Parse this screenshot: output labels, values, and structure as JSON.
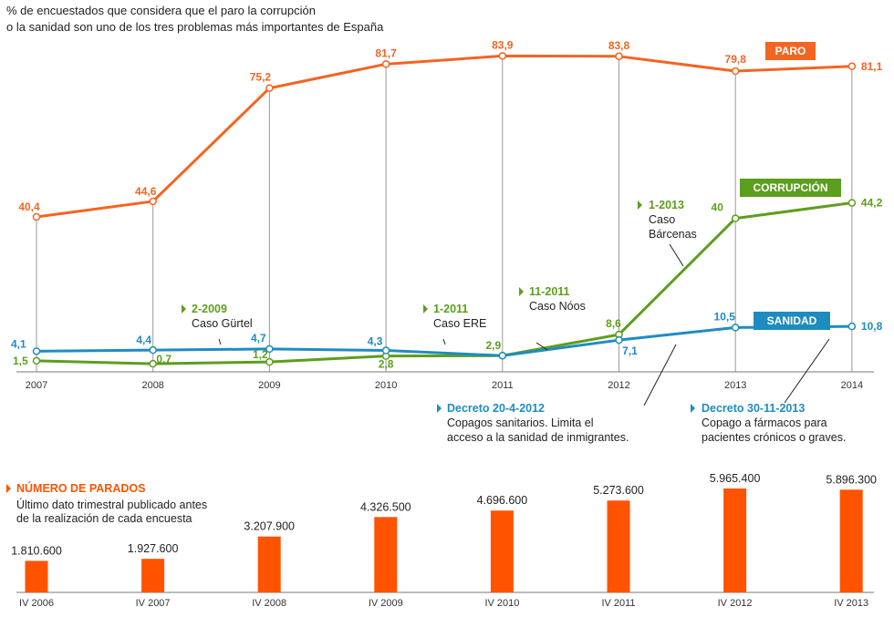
{
  "header": {
    "line1": "% de encuestados que considera que el paro la corrupción",
    "line2": "o la sanidad son uno de los tres problemas más importantes de España"
  },
  "colors": {
    "paro": "#f26522",
    "corrupcion": "#5c9e1d",
    "sanidad": "#1f8cc0",
    "bars": "#ff5300"
  },
  "chart_data": [
    {
      "type": "line",
      "x": [
        "2007",
        "2008",
        "2009",
        "2010",
        "2011",
        "2012",
        "2013",
        "2014"
      ],
      "ylim": [
        0,
        90
      ],
      "series": [
        {
          "name": "PARO",
          "values": [
            40.4,
            44.6,
            75.2,
            81.7,
            83.9,
            83.8,
            79.8,
            81.1
          ],
          "labels": [
            "40,4",
            "44,6",
            "75,2",
            "81,7",
            "83,9",
            "83,8",
            "79,8",
            "81,1"
          ]
        },
        {
          "name": "CORRUPCIÓN",
          "values": [
            1.5,
            0.7,
            1.2,
            2.8,
            2.9,
            8.6,
            40,
            44.2
          ],
          "labels": [
            "1,5",
            "0,7",
            "1,2",
            "2,8",
            "2,9",
            "8,6",
            "40",
            "44,2"
          ]
        },
        {
          "name": "SANIDAD",
          "values": [
            4.1,
            4.4,
            4.7,
            4.3,
            2.9,
            7.1,
            10.5,
            10.8
          ],
          "labels": [
            "4,1",
            "4,4",
            "4,7",
            "4,3",
            "",
            "7,1",
            "10,5",
            "10,8"
          ]
        }
      ],
      "annotations": [
        {
          "title": "2-2009",
          "text": [
            "Caso Gürtel"
          ],
          "series": "CORRUPCIÓN"
        },
        {
          "title": "1-2011",
          "text": [
            "Caso ERE"
          ],
          "series": "CORRUPCIÓN"
        },
        {
          "title": "11-2011",
          "text": [
            "Caso Nóos"
          ],
          "series": "CORRUPCIÓN"
        },
        {
          "title": "1-2013",
          "text": [
            "Caso",
            "Bárcenas"
          ],
          "series": "CORRUPCIÓN"
        },
        {
          "title": "Decreto 20-4-2012",
          "text": [
            "Copagos sanitarios. Limita el",
            "acceso a la sanidad de inmigrantes."
          ],
          "series": "SANIDAD"
        },
        {
          "title": "Decreto 30-11-2013",
          "text": [
            "Copago a fármacos para",
            "pacientes crónicos o graves."
          ],
          "series": "SANIDAD"
        }
      ]
    },
    {
      "type": "bar",
      "title": "NÚMERO DE PARADOS",
      "subtitle": [
        "Último dato trimestral publicado antes",
        "de la realización de cada encuesta"
      ],
      "categories": [
        "IV 2006",
        "IV 2007",
        "IV 2008",
        "IV 2009",
        "IV 2010",
        "IV 2011",
        "IV 2012",
        "IV 2013"
      ],
      "values": [
        1810600,
        1927600,
        3207900,
        4326500,
        4696600,
        5273600,
        5965400,
        5896300
      ],
      "labels": [
        "1.810.600",
        "1.927.600",
        "3.207.900",
        "4.326.500",
        "4.696.600",
        "5.273.600",
        "5.965.400",
        "5.896.300"
      ]
    }
  ]
}
